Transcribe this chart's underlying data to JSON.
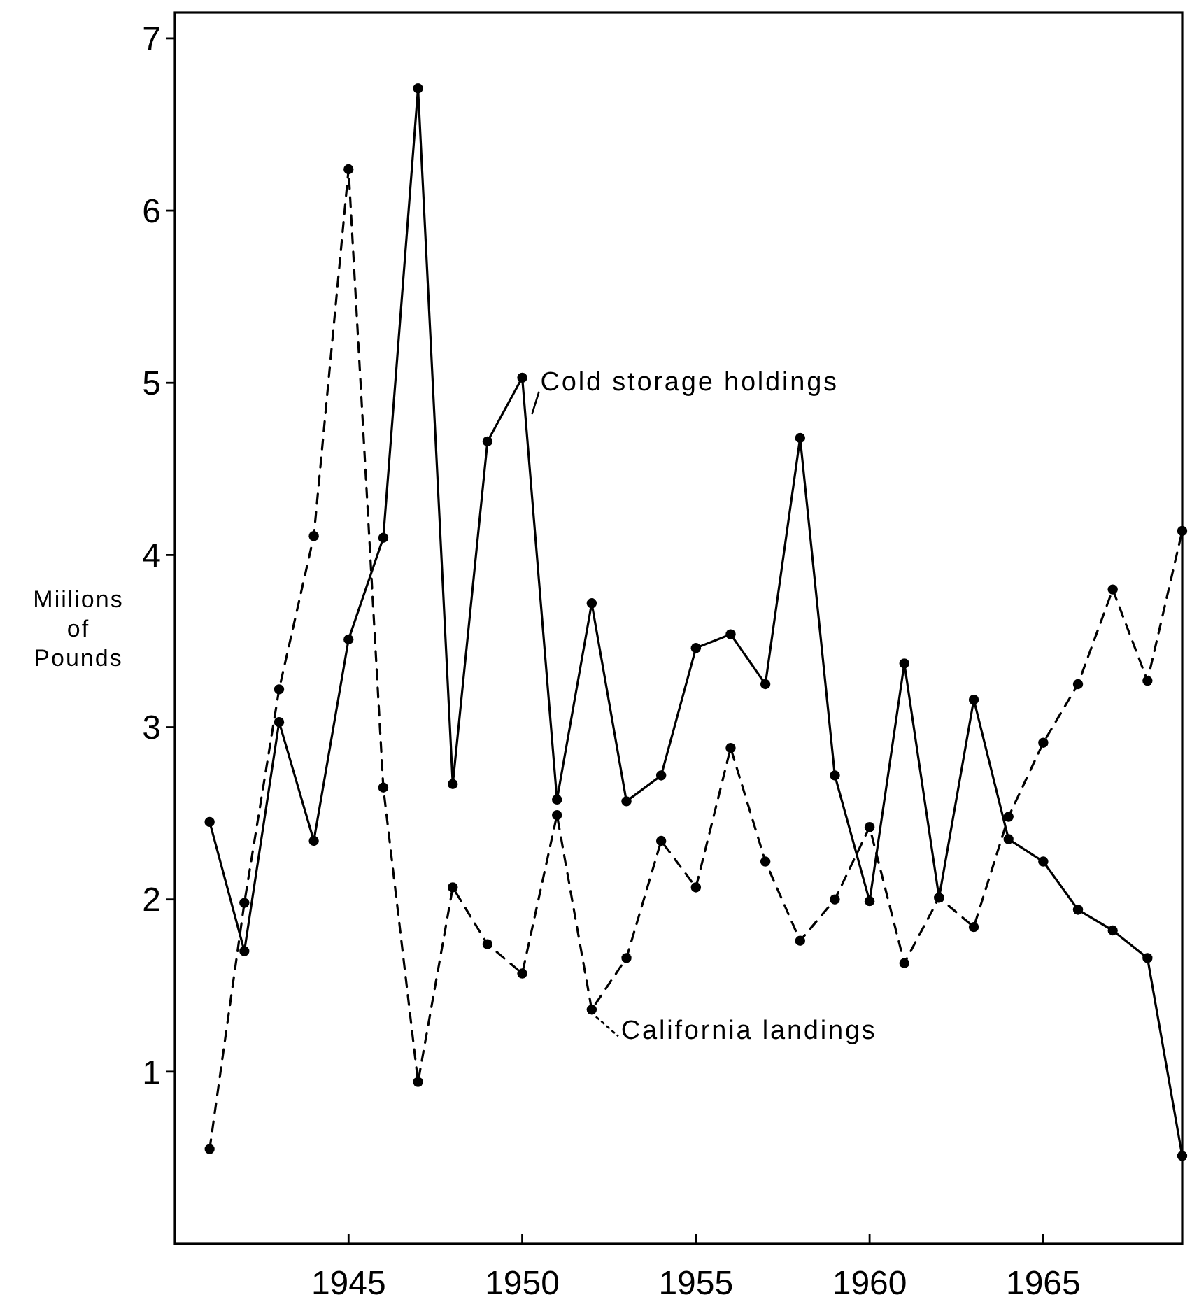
{
  "chart_data": {
    "type": "line",
    "ylabel": "Miilions of Pounds",
    "x": [
      1941,
      1942,
      1943,
      1944,
      1945,
      1946,
      1947,
      1948,
      1949,
      1950,
      1951,
      1952,
      1953,
      1954,
      1955,
      1956,
      1957,
      1958,
      1959,
      1960,
      1961,
      1962,
      1963,
      1964,
      1965,
      1966,
      1967,
      1968,
      1969
    ],
    "xlim": [
      1940,
      1969
    ],
    "xticks": [
      1945,
      1950,
      1955,
      1960,
      1965
    ],
    "ylim": [
      0,
      7.15
    ],
    "yticks": [
      1,
      2,
      3,
      4,
      5,
      6,
      7
    ],
    "marker": "circle",
    "series": [
      {
        "name": "Cold storage holdings",
        "color": "#000000",
        "line_style": "solid",
        "values": [
          2.45,
          1.7,
          3.03,
          2.34,
          3.51,
          4.1,
          6.71,
          2.67,
          4.66,
          5.03,
          2.58,
          3.72,
          2.57,
          2.72,
          3.46,
          3.54,
          3.25,
          4.68,
          2.72,
          1.99,
          3.37,
          2.01,
          3.16,
          2.35,
          2.22,
          1.94,
          1.82,
          1.66,
          0.51
        ]
      },
      {
        "name": "California landings",
        "color": "#000000",
        "line_style": "dashed",
        "values": [
          0.55,
          1.98,
          3.22,
          4.11,
          6.24,
          2.65,
          0.94,
          2.07,
          1.74,
          1.57,
          2.49,
          1.36,
          1.66,
          2.34,
          2.07,
          2.88,
          2.22,
          1.76,
          2.0,
          2.42,
          1.63,
          2.01,
          1.84,
          2.48,
          2.91,
          3.25,
          3.8,
          3.27,
          4.14
        ]
      }
    ]
  }
}
